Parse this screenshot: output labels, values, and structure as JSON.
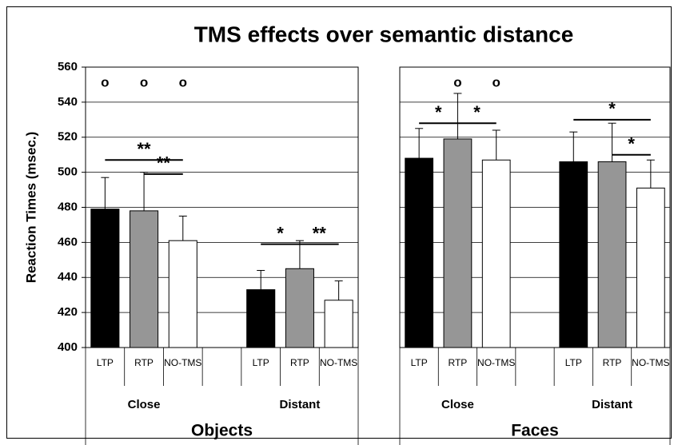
{
  "chart_data": [
    {
      "type": "bar",
      "title": "TMS effects over semantic distance",
      "ylabel": "Reaction Times (msec.)",
      "xlabel": "Objects",
      "categories": [
        "LTP",
        "RTP",
        "NO-TMS"
      ],
      "colors": [
        "#000000",
        "#969696",
        "#ffffff"
      ],
      "series": [
        {
          "name": "Close",
          "values": [
            479,
            478,
            461
          ],
          "errors": [
            18,
            22,
            14
          ]
        },
        {
          "name": "Distant",
          "values": [
            433,
            445,
            427
          ],
          "errors": [
            11,
            16,
            11
          ]
        }
      ],
      "ylim": [
        400,
        560
      ],
      "yticks": [
        400,
        420,
        440,
        460,
        480,
        500,
        520,
        540,
        560
      ],
      "grid": true,
      "show_yticks": true,
      "markers": [
        {
          "text": "o",
          "group": 0,
          "category": 0,
          "y": 550
        },
        {
          "text": "o",
          "group": 0,
          "category": 1,
          "y": 550
        },
        {
          "text": "o",
          "group": 0,
          "category": 2,
          "y": 550
        }
      ],
      "brackets": [
        {
          "text": "**",
          "group": 0,
          "from": 0,
          "to": 2,
          "y": 507
        },
        {
          "text": "**",
          "group": 0,
          "from": 1,
          "to": 2,
          "y": 499
        },
        {
          "text": "*",
          "group": 1,
          "from": 0,
          "to": 1,
          "y": 459
        },
        {
          "text": "**",
          "group": 1,
          "from": 1,
          "to": 2,
          "y": 459
        }
      ]
    },
    {
      "type": "bar",
      "xlabel": "Faces",
      "categories": [
        "LTP",
        "RTP",
        "NO-TMS"
      ],
      "colors": [
        "#000000",
        "#969696",
        "#ffffff"
      ],
      "series": [
        {
          "name": "Close",
          "values": [
            508,
            519,
            507
          ],
          "errors": [
            17,
            26,
            17
          ]
        },
        {
          "name": "Distant",
          "values": [
            506,
            506,
            491
          ],
          "errors": [
            17,
            22,
            16
          ]
        }
      ],
      "ylim": [
        400,
        560
      ],
      "yticks": [
        400,
        420,
        440,
        460,
        480,
        500,
        520,
        540,
        560
      ],
      "grid": true,
      "show_yticks": false,
      "markers": [
        {
          "text": "o",
          "group": 0,
          "category": 1,
          "y": 550
        },
        {
          "text": "o",
          "group": 0,
          "category": 2,
          "y": 550
        }
      ],
      "brackets": [
        {
          "text": "*",
          "group": 0,
          "from": 0,
          "to": 1,
          "y": 528
        },
        {
          "text": "*",
          "group": 0,
          "from": 1,
          "to": 2,
          "y": 528
        },
        {
          "text": "*",
          "group": 1,
          "from": 0,
          "to": 2,
          "y": 530
        },
        {
          "text": "*",
          "group": 1,
          "from": 1,
          "to": 2,
          "y": 510
        }
      ]
    }
  ]
}
